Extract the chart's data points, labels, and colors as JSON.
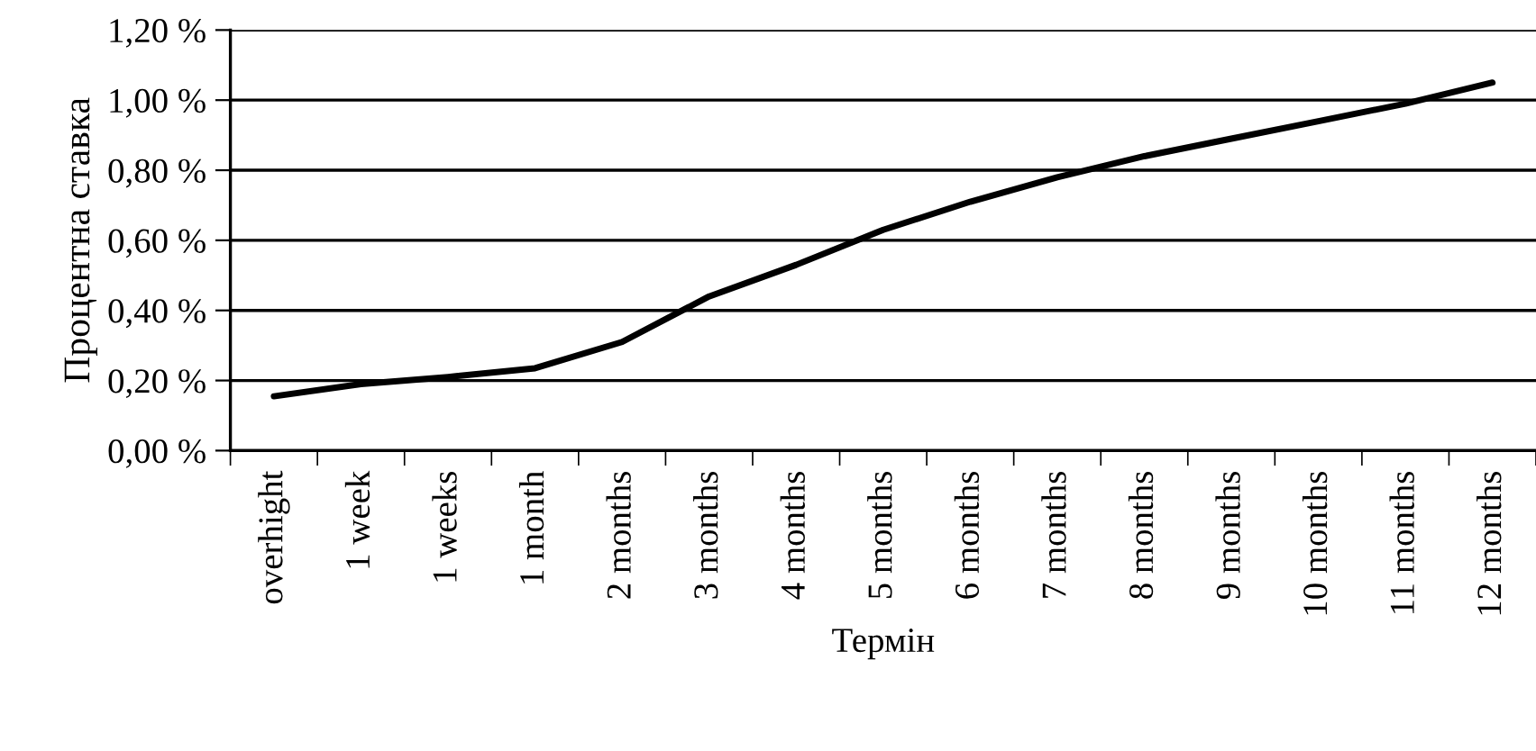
{
  "chart_data": {
    "type": "line",
    "xlabel": "Термін",
    "ylabel": "Процентна ставка",
    "categories": [
      "overhight",
      "1 week",
      "1 weeks",
      "1 month",
      "2 months",
      "3 months",
      "4 months",
      "5 months",
      "6 months",
      "7 months",
      "8 months",
      "9 months",
      "10 months",
      "11 months",
      "12 months"
    ],
    "series": [
      {
        "color": "#000000",
        "values": [
          0.155,
          0.19,
          0.21,
          0.235,
          0.31,
          0.44,
          0.53,
          0.63,
          0.71,
          0.78,
          0.84,
          0.89,
          0.94,
          0.99,
          1.05
        ]
      }
    ],
    "ylim": [
      0,
      1.2
    ],
    "yticks": [
      {
        "value": 0,
        "label": "0,00 %"
      },
      {
        "value": 0.2,
        "label": "0,20 %"
      },
      {
        "value": 0.4,
        "label": "0,40 %"
      },
      {
        "value": 0.6,
        "label": "0,60 %"
      },
      {
        "value": 0.8,
        "label": "0,80 %"
      },
      {
        "value": 1.0,
        "label": "1,00 %"
      },
      {
        "value": 1.2,
        "label": "1,20 %"
      }
    ],
    "grid": "y",
    "marker": "none",
    "line_style": "solid"
  }
}
